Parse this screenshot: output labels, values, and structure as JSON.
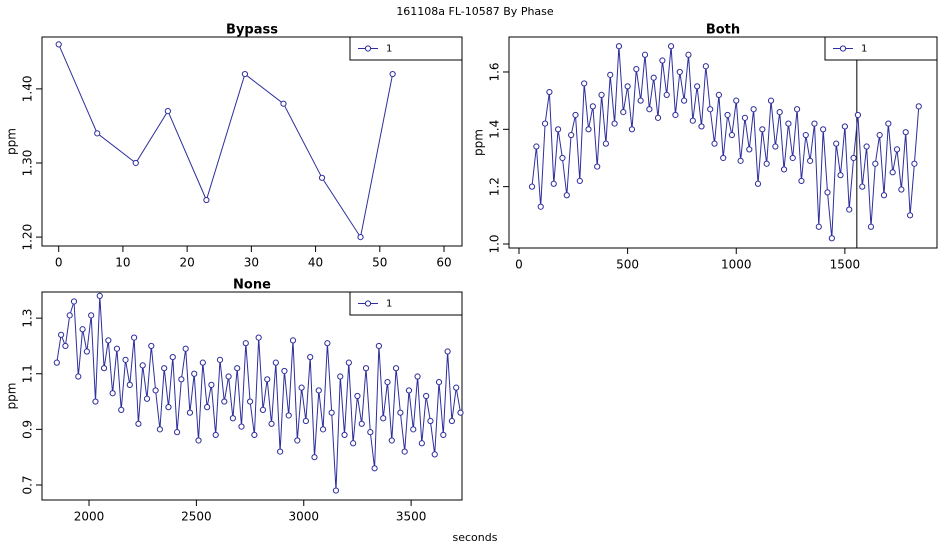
{
  "title": "161108a    FL-10587   By Phase",
  "xlabel": "seconds",
  "chart_data": [
    {
      "type": "line",
      "title": "Bypass",
      "ylabel": "ppm",
      "legend": "topright",
      "x": [
        0,
        6,
        12,
        17,
        23,
        29,
        35,
        41,
        47,
        52
      ],
      "series": [
        {
          "name": "1",
          "color": "#2e2e9c",
          "values": [
            1.46,
            1.34,
            1.3,
            1.37,
            1.25,
            1.42,
            1.38,
            1.28,
            1.2,
            1.42
          ]
        }
      ],
      "xlim": [
        -2.6,
        62.8
      ],
      "ylim": [
        1.188,
        1.47
      ],
      "xticks": [
        0,
        10,
        20,
        30,
        40,
        50,
        60
      ],
      "yticks": [
        {
          "value": 1.2,
          "label": "1.20"
        },
        {
          "value": 1.3,
          "label": "1.30"
        },
        {
          "value": 1.4,
          "label": "1.40"
        }
      ]
    },
    {
      "type": "line",
      "title": "Both",
      "ylabel": "ppm",
      "legend": "topright",
      "vline": 1555,
      "x": [
        60,
        80,
        100,
        120,
        140,
        160,
        180,
        200,
        220,
        240,
        260,
        280,
        300,
        320,
        340,
        360,
        380,
        400,
        420,
        440,
        460,
        480,
        500,
        520,
        540,
        560,
        580,
        600,
        620,
        640,
        660,
        680,
        700,
        720,
        740,
        760,
        780,
        800,
        820,
        840,
        860,
        880,
        900,
        920,
        940,
        960,
        980,
        1000,
        1020,
        1040,
        1060,
        1080,
        1100,
        1120,
        1140,
        1160,
        1180,
        1200,
        1220,
        1240,
        1260,
        1280,
        1300,
        1320,
        1340,
        1360,
        1380,
        1400,
        1420,
        1440,
        1460,
        1480,
        1500,
        1520,
        1540,
        1560,
        1580,
        1600,
        1620,
        1640,
        1660,
        1680,
        1700,
        1720,
        1740,
        1760,
        1780,
        1800,
        1820,
        1840
      ],
      "series": [
        {
          "name": "1",
          "color": "#2e2e9c",
          "values": [
            1.2,
            1.34,
            1.13,
            1.42,
            1.53,
            1.21,
            1.4,
            1.3,
            1.17,
            1.38,
            1.45,
            1.22,
            1.56,
            1.4,
            1.48,
            1.27,
            1.52,
            1.35,
            1.59,
            1.42,
            1.69,
            1.46,
            1.55,
            1.4,
            1.61,
            1.5,
            1.66,
            1.47,
            1.58,
            1.44,
            1.64,
            1.52,
            1.69,
            1.45,
            1.6,
            1.5,
            1.66,
            1.43,
            1.55,
            1.41,
            1.62,
            1.47,
            1.35,
            1.52,
            1.3,
            1.45,
            1.38,
            1.5,
            1.29,
            1.44,
            1.33,
            1.47,
            1.21,
            1.4,
            1.28,
            1.5,
            1.34,
            1.46,
            1.26,
            1.42,
            1.3,
            1.47,
            1.22,
            1.38,
            1.29,
            1.42,
            1.06,
            1.4,
            1.18,
            1.02,
            1.35,
            1.24,
            1.41,
            1.12,
            1.3,
            1.45,
            1.2,
            1.34,
            1.06,
            1.28,
            1.38,
            1.17,
            1.42,
            1.25,
            1.33,
            1.19,
            1.39,
            1.1,
            1.28,
            1.48
          ]
        }
      ],
      "xlim": [
        -46,
        1924
      ],
      "ylim": [
        0.986,
        1.722
      ],
      "xticks": [
        0,
        500,
        1000,
        1500
      ],
      "yticks": [
        {
          "value": 1.0,
          "label": "1.0"
        },
        1.2,
        1.4,
        1.6
      ]
    },
    {
      "type": "line",
      "title": "None",
      "ylabel": "ppm",
      "legend": "topright",
      "x": [
        1850,
        1870,
        1890,
        1910,
        1930,
        1950,
        1970,
        1990,
        2010,
        2030,
        2050,
        2070,
        2090,
        2110,
        2130,
        2150,
        2170,
        2190,
        2210,
        2230,
        2250,
        2270,
        2290,
        2310,
        2330,
        2350,
        2370,
        2390,
        2410,
        2430,
        2450,
        2470,
        2490,
        2510,
        2530,
        2550,
        2570,
        2590,
        2610,
        2630,
        2650,
        2670,
        2690,
        2710,
        2730,
        2750,
        2770,
        2790,
        2810,
        2830,
        2850,
        2870,
        2890,
        2910,
        2930,
        2950,
        2970,
        2990,
        3010,
        3030,
        3050,
        3070,
        3090,
        3110,
        3130,
        3150,
        3170,
        3190,
        3210,
        3230,
        3250,
        3270,
        3290,
        3310,
        3330,
        3350,
        3370,
        3390,
        3410,
        3430,
        3450,
        3470,
        3490,
        3510,
        3530,
        3550,
        3570,
        3590,
        3610,
        3630,
        3650,
        3670,
        3690,
        3710,
        3730
      ],
      "series": [
        {
          "name": "1",
          "color": "#2e2e9c",
          "values": [
            1.14,
            1.24,
            1.2,
            1.31,
            1.36,
            1.09,
            1.26,
            1.18,
            1.31,
            1.0,
            1.38,
            1.12,
            1.22,
            1.03,
            1.19,
            0.97,
            1.15,
            1.06,
            1.23,
            0.92,
            1.13,
            1.01,
            1.2,
            1.04,
            0.9,
            1.12,
            0.98,
            1.16,
            0.89,
            1.08,
            1.19,
            0.96,
            1.1,
            0.86,
            1.14,
            0.98,
            1.06,
            0.88,
            1.15,
            1.0,
            1.09,
            0.94,
            1.12,
            0.91,
            1.21,
            1.0,
            0.88,
            1.23,
            0.97,
            1.08,
            0.92,
            1.14,
            0.82,
            1.11,
            0.95,
            1.22,
            0.86,
            1.05,
            0.93,
            1.16,
            0.8,
            1.04,
            0.9,
            1.21,
            0.96,
            0.68,
            1.09,
            0.88,
            1.14,
            0.85,
            1.02,
            0.92,
            1.12,
            0.89,
            0.76,
            1.2,
            0.94,
            1.07,
            0.86,
            1.12,
            0.96,
            0.82,
            1.04,
            0.9,
            1.09,
            0.85,
            1.02,
            0.93,
            0.81,
            1.07,
            0.88,
            1.18,
            0.93,
            1.05,
            0.96
          ]
        }
      ],
      "xlim": [
        1781,
        3737
      ],
      "ylim": [
        0.646,
        1.394
      ],
      "xticks": [
        2000,
        2500,
        3000,
        3500
      ],
      "yticks": [
        0.7,
        0.9,
        1.1,
        1.3
      ]
    }
  ]
}
